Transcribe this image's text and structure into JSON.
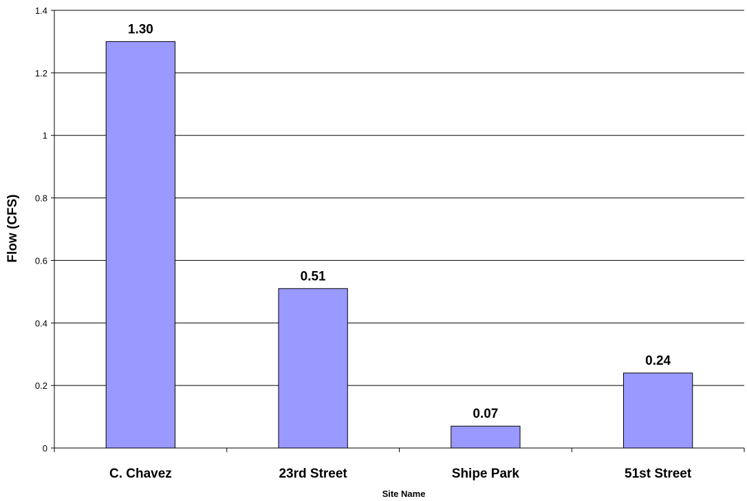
{
  "chart_data": {
    "type": "bar",
    "title": "",
    "xlabel": "Site Name",
    "ylabel": "Flow (CFS)",
    "categories": [
      "C. Chavez",
      "23rd Street",
      "Shipe Park",
      "51st Street"
    ],
    "values": [
      1.3,
      0.51,
      0.07,
      0.24
    ],
    "value_labels": [
      "1.30",
      "0.51",
      "0.07",
      "0.24"
    ],
    "ylim": [
      0,
      1.4
    ],
    "yticks": [
      0,
      0.2,
      0.4,
      0.6,
      0.8,
      1,
      1.2,
      1.4
    ],
    "ytick_labels": [
      "0",
      "0.2",
      "0.4",
      "0.6",
      "0.8",
      "1",
      "1.2",
      "1.4"
    ],
    "grid": true,
    "legend": "none",
    "bar_color": "#9999ff",
    "bar_stroke": "#000000"
  }
}
